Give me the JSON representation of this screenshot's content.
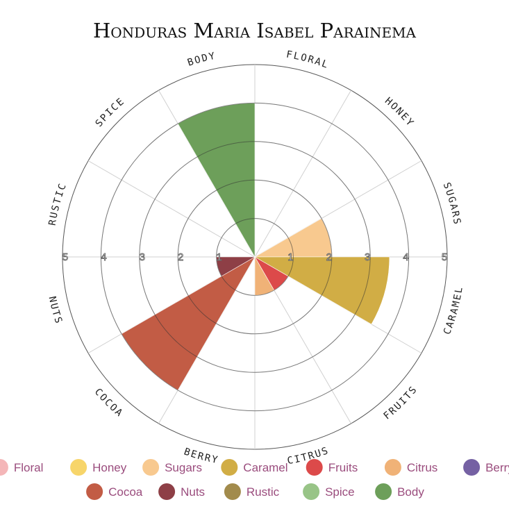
{
  "chart_data": {
    "type": "polar-bar",
    "title": "Honduras Maria Isabel Parainema",
    "rlim": [
      0,
      5
    ],
    "r_ticks": [
      "1",
      "2",
      "3",
      "4",
      "5"
    ],
    "legend_placement": "bottom",
    "categories": [
      "Floral",
      "Honey",
      "Sugars",
      "Caramel",
      "Fruits",
      "Citrus",
      "Berry",
      "Cocoa",
      "Nuts",
      "Rustic",
      "Spice",
      "Body"
    ],
    "axis_labels": [
      "FLORAL",
      "HONEY",
      "SUGARS",
      "CARAMEL",
      "FRUITS",
      "CITRUS",
      "BERRY",
      "COCOA",
      "NUTS",
      "RUSTIC",
      "SPICE",
      "BODY"
    ],
    "values": [
      0,
      0,
      2,
      3.5,
      1,
      1,
      0,
      4,
      1,
      0,
      0,
      4
    ],
    "colors": [
      "#f4b6b8",
      "#f7d56a",
      "#f8c98f",
      "#d1ad45",
      "#dc4a4a",
      "#f0b277",
      "#7561a3",
      "#c25c45",
      "#8e3f46",
      "#a28b4c",
      "#98c487",
      "#6d9f5a"
    ]
  }
}
